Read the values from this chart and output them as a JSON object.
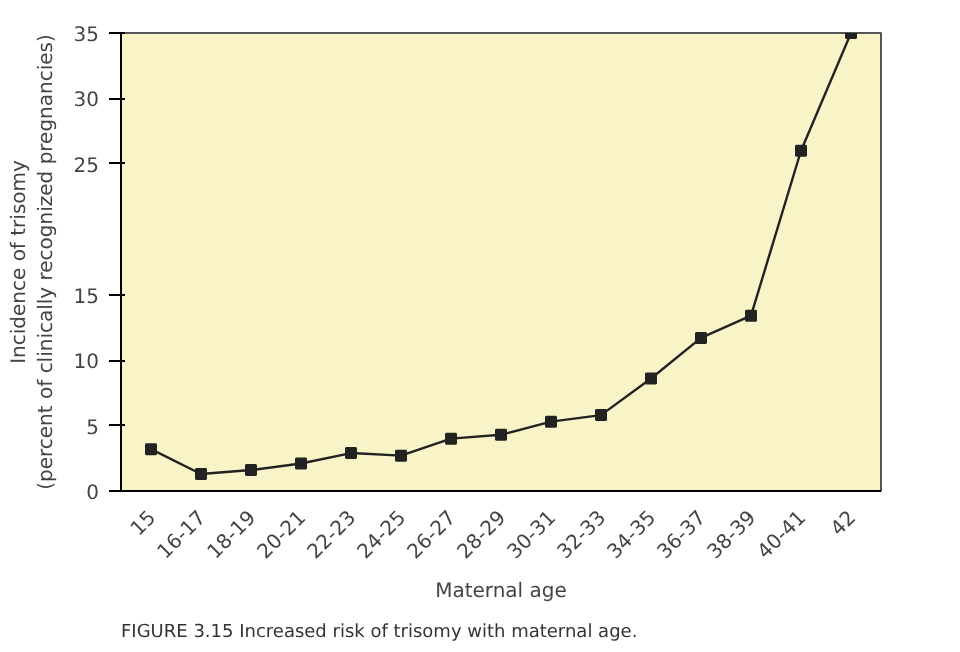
{
  "chart_data": {
    "type": "line",
    "xlabel": "Maternal age",
    "ylabel": "Incidence of trisomy\n(percent of clinically recognized pregnancies)",
    "categories": [
      "15",
      "16-17",
      "18-19",
      "20-21",
      "22-23",
      "24-25",
      "26-27",
      "28-29",
      "30-31",
      "32-33",
      "34-35",
      "36-37",
      "38-39",
      "40-41",
      "42"
    ],
    "series": [
      {
        "color": "#222222",
        "values": [
          3.2,
          1.3,
          1.6,
          2.1,
          2.9,
          2.7,
          4.0,
          4.3,
          5.3,
          5.8,
          8.6,
          11.7,
          13.4,
          26,
          35
        ]
      }
    ],
    "ylim": [
      0,
      35
    ],
    "yticks": [
      0,
      5,
      10,
      15,
      25,
      30,
      35
    ],
    "marker": "square",
    "grid": false,
    "annotations": [
      "FIGURE 3.15  Increased risk of trisomy with maternal age."
    ]
  }
}
